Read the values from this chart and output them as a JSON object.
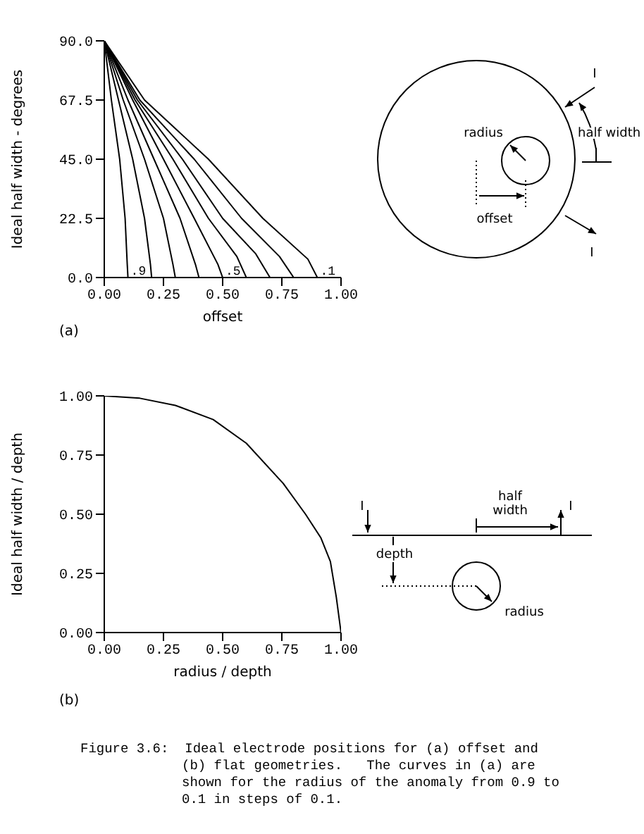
{
  "chart_data": [
    {
      "type": "line",
      "xlabel": "offset",
      "ylabel": "Ideal half width - degrees",
      "xlim": [
        0,
        1
      ],
      "xticks": [
        {
          "value": 0,
          "label": "0.00"
        },
        {
          "value": 0.25,
          "label": "0.25"
        },
        {
          "value": 0.5,
          "label": "0.50"
        },
        {
          "value": 0.75,
          "label": "0.75"
        },
        {
          "value": 1,
          "label": "1.00"
        }
      ],
      "ylim": [
        0,
        90
      ],
      "yticks": [
        {
          "value": 0,
          "label": "0.0"
        },
        {
          "value": 22.5,
          "label": "22.5"
        },
        {
          "value": 45,
          "label": "45.0"
        },
        {
          "value": 67.5,
          "label": "67.5"
        },
        {
          "value": 90,
          "label": "90.0"
        }
      ],
      "marker": "none",
      "line_style": "solid",
      "series": [
        {
          "name": ".9",
          "color": "#000000",
          "x": [
            0,
            0.03,
            0.065,
            0.088,
            0.097,
            0.1
          ],
          "values": [
            90,
            67.5,
            45,
            22.5,
            5,
            0
          ]
        },
        {
          "color": "#000000",
          "x": [
            0,
            0.06,
            0.12,
            0.17,
            0.195,
            0.2
          ],
          "values": [
            90,
            67.5,
            45,
            22.5,
            5,
            0
          ]
        },
        {
          "color": "#000000",
          "x": [
            0,
            0.08,
            0.17,
            0.25,
            0.29,
            0.3
          ],
          "values": [
            90,
            67.5,
            45,
            22.5,
            5,
            0
          ]
        },
        {
          "color": "#000000",
          "x": [
            0,
            0.1,
            0.21,
            0.32,
            0.385,
            0.4
          ],
          "values": [
            90,
            67.5,
            45,
            22.5,
            5,
            0
          ]
        },
        {
          "name": ".5",
          "color": "#000000",
          "x": [
            0,
            0.12,
            0.25,
            0.38,
            0.48,
            0.5
          ],
          "values": [
            90,
            67.5,
            45,
            22.5,
            5,
            0
          ]
        },
        {
          "color": "#000000",
          "x": [
            0,
            0.13,
            0.29,
            0.44,
            0.56,
            0.6
          ],
          "values": [
            90,
            67.5,
            45,
            22.5,
            8,
            0
          ]
        },
        {
          "color": "#000000",
          "x": [
            0,
            0.14,
            0.33,
            0.5,
            0.64,
            0.7
          ],
          "values": [
            90,
            67.5,
            45,
            22.5,
            9,
            0
          ]
        },
        {
          "color": "#000000",
          "x": [
            0,
            0.15,
            0.38,
            0.58,
            0.74,
            0.8
          ],
          "values": [
            90,
            67.5,
            45,
            22.5,
            8,
            0
          ]
        },
        {
          "name": ".1",
          "color": "#000000",
          "x": [
            0,
            0.17,
            0.44,
            0.67,
            0.86,
            0.9
          ],
          "values": [
            90,
            67.5,
            45,
            22.5,
            7,
            0
          ]
        }
      ],
      "annotations": [
        "(a)",
        "radius",
        "offset",
        "half width",
        "I",
        "I"
      ]
    },
    {
      "type": "line",
      "xlabel": "radius / depth",
      "ylabel": "Ideal half width / depth",
      "xlim": [
        0,
        1
      ],
      "xticks": [
        {
          "value": 0,
          "label": "0.00"
        },
        {
          "value": 0.25,
          "label": "0.25"
        },
        {
          "value": 0.5,
          "label": "0.50"
        },
        {
          "value": 0.75,
          "label": "0.75"
        },
        {
          "value": 1,
          "label": "1.00"
        }
      ],
      "ylim": [
        0,
        1
      ],
      "yticks": [
        {
          "value": 0,
          "label": "0.00"
        },
        {
          "value": 0.25,
          "label": "0.25"
        },
        {
          "value": 0.5,
          "label": "0.50"
        },
        {
          "value": 0.75,
          "label": "0.75"
        },
        {
          "value": 1,
          "label": "1.00"
        }
      ],
      "marker": "none",
      "line_style": "solid",
      "x": [
        0,
        0.15,
        0.3,
        0.46,
        0.6,
        0.756,
        0.85,
        0.915,
        0.955,
        0.98,
        1
      ],
      "values": [
        1,
        0.99,
        0.96,
        0.9,
        0.8,
        0.63,
        0.5,
        0.4,
        0.3,
        0.15,
        0
      ],
      "color": "#000000",
      "annotations": [
        "(b)",
        "I",
        "I",
        "half width",
        "depth",
        "radius",
        "Figure 3.6:  Ideal electrode positions for (a) offset and (b) flat geometries.   The curves in (a) are shown for the radius of the anomaly from 0.9 to 0.1 in steps of 0.1."
      ]
    }
  ]
}
